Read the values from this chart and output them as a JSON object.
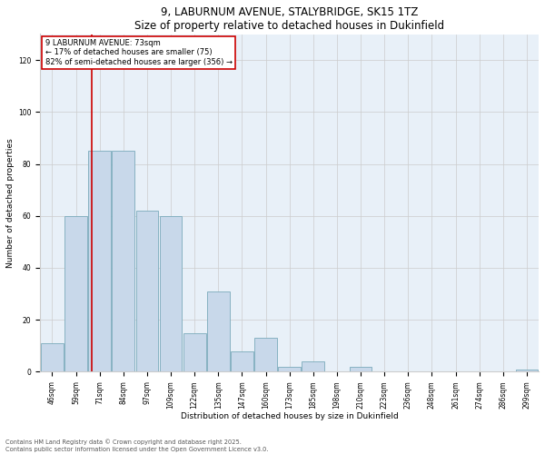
{
  "title": "9, LABURNUM AVENUE, STALYBRIDGE, SK15 1TZ",
  "subtitle": "Size of property relative to detached houses in Dukinfield",
  "xlabel": "Distribution of detached houses by size in Dukinfield",
  "ylabel": "Number of detached properties",
  "categories": [
    "46sqm",
    "59sqm",
    "71sqm",
    "84sqm",
    "97sqm",
    "109sqm",
    "122sqm",
    "135sqm",
    "147sqm",
    "160sqm",
    "173sqm",
    "185sqm",
    "198sqm",
    "210sqm",
    "223sqm",
    "236sqm",
    "248sqm",
    "261sqm",
    "274sqm",
    "286sqm",
    "299sqm"
  ],
  "values": [
    11,
    60,
    85,
    85,
    62,
    60,
    15,
    31,
    8,
    13,
    2,
    4,
    0,
    2,
    0,
    0,
    0,
    0,
    0,
    0,
    1
  ],
  "bar_color": "#c8d8ea",
  "bar_edge_color": "#7aaabb",
  "ref_line_color": "#cc0000",
  "annotation_box_color": "#cc0000",
  "ylim": [
    0,
    130
  ],
  "yticks": [
    0,
    20,
    40,
    60,
    80,
    100,
    120
  ],
  "grid_color": "#cccccc",
  "bg_color": "#e8f0f8",
  "title_fontsize": 8.5,
  "subtitle_fontsize": 7.5,
  "axis_label_fontsize": 6.5,
  "tick_fontsize": 5.5,
  "annotation_fontsize": 6.0,
  "footer_fontsize": 4.8,
  "footer1": "Contains HM Land Registry data © Crown copyright and database right 2025.",
  "footer2": "Contains public sector information licensed under the Open Government Licence v3.0.",
  "ref_label": "9 LABURNUM AVENUE: 73sqm",
  "pct_smaller": "17% of detached houses are smaller (75)",
  "pct_larger": "82% of semi-detached houses are larger (356)"
}
